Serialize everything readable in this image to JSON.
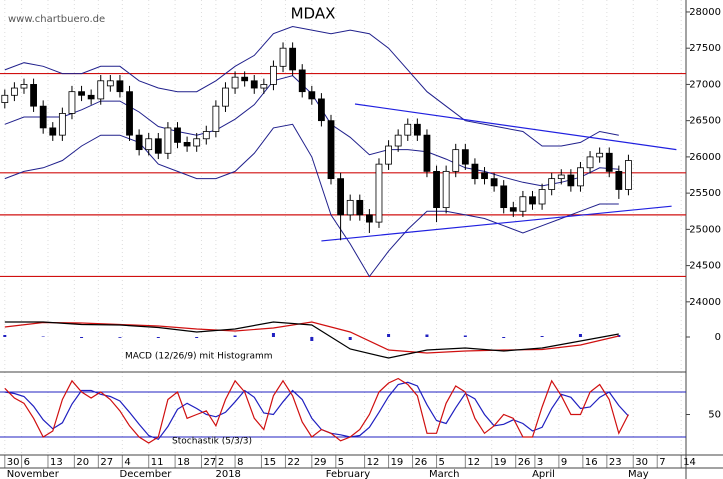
{
  "chart_data": [
    {
      "type": "candlestick",
      "title": "MDAX",
      "source": "www.chartbuero.de",
      "x": [
        0,
        2,
        4,
        6,
        8,
        10,
        12,
        14,
        16,
        18,
        20,
        22,
        24,
        26,
        28,
        30,
        32,
        34,
        36,
        38,
        40,
        42,
        44,
        46,
        48,
        50,
        52,
        54,
        56,
        58,
        60,
        62,
        64,
        66,
        68,
        70,
        72,
        74,
        76,
        78,
        80,
        82,
        84,
        86,
        88,
        90,
        92,
        94,
        96,
        98,
        100,
        102,
        104,
        106,
        108,
        110,
        112,
        114,
        116,
        118,
        120,
        122,
        124,
        126,
        128,
        130
      ],
      "open": [
        26750,
        26850,
        26950,
        27000,
        26700,
        26400,
        26300,
        26600,
        26900,
        26850,
        26800,
        26980,
        27050,
        26900,
        26300,
        26100,
        26250,
        26050,
        26400,
        26200,
        26150,
        26250,
        26350,
        26700,
        26950,
        27100,
        27050,
        26950,
        27000,
        27250,
        27500,
        27200,
        26900,
        26800,
        26500,
        25700,
        25200,
        25400,
        25200,
        25100,
        25900,
        26150,
        26300,
        26450,
        26300,
        25800,
        25300,
        25800,
        26100,
        25900,
        25780,
        25700,
        25600,
        25300,
        25250,
        25450,
        25350,
        25550,
        25700,
        25750,
        25600,
        25850,
        26000,
        26050,
        25800,
        25550
      ],
      "high": [
        26930,
        27030,
        27080,
        27080,
        26780,
        26480,
        26680,
        26980,
        26980,
        26930,
        27130,
        27130,
        27130,
        26980,
        26380,
        26330,
        26330,
        26480,
        26480,
        26280,
        26330,
        26430,
        26780,
        27030,
        27180,
        27180,
        27130,
        27080,
        27330,
        27580,
        27580,
        27280,
        26980,
        26880,
        26580,
        25780,
        25480,
        25480,
        25280,
        25980,
        26230,
        26380,
        26530,
        26530,
        26380,
        25880,
        25880,
        26180,
        26180,
        25980,
        25860,
        25780,
        25680,
        25380,
        25530,
        25530,
        25630,
        25780,
        25830,
        25830,
        25930,
        26080,
        26130,
        26130,
        25880,
        26030
      ],
      "low": [
        26670,
        26770,
        26870,
        26620,
        26320,
        26220,
        26220,
        26520,
        26770,
        26720,
        26720,
        26900,
        26820,
        26220,
        26020,
        26020,
        25970,
        25970,
        26120,
        26070,
        26070,
        26170,
        26270,
        26620,
        26870,
        26970,
        26870,
        26870,
        26920,
        27170,
        27120,
        26820,
        26720,
        26420,
        25620,
        24850,
        25120,
        25120,
        24950,
        25020,
        25820,
        26070,
        26220,
        26220,
        25720,
        25100,
        25220,
        25720,
        25820,
        25620,
        25620,
        25520,
        25220,
        25170,
        25170,
        25270,
        25270,
        25470,
        25620,
        25520,
        25520,
        25770,
        25920,
        25720,
        25420,
        25470
      ],
      "close": [
        26850,
        26950,
        27000,
        26700,
        26400,
        26300,
        26600,
        26900,
        26850,
        26800,
        27050,
        27050,
        26900,
        26300,
        26100,
        26250,
        26050,
        26400,
        26200,
        26150,
        26250,
        26350,
        26700,
        26950,
        27100,
        27050,
        26950,
        27000,
        27250,
        27500,
        27200,
        26900,
        26800,
        26500,
        25700,
        25200,
        25400,
        25200,
        25100,
        25900,
        26150,
        26300,
        26450,
        26300,
        25800,
        25300,
        25800,
        26100,
        25900,
        25700,
        25700,
        25600,
        25300,
        25250,
        25450,
        25350,
        25550,
        25700,
        25750,
        25600,
        25850,
        26000,
        26050,
        25800,
        25550,
        25950
      ],
      "up_color": "#ffffff",
      "down_color": "#000000",
      "bands": {
        "color": "#20208c",
        "x": [
          0,
          4,
          8,
          12,
          16,
          20,
          24,
          28,
          32,
          36,
          40,
          44,
          48,
          52,
          56,
          60,
          64,
          68,
          72,
          76,
          80,
          84,
          88,
          92,
          96,
          100,
          104,
          108,
          112,
          116,
          120,
          124,
          128
        ],
        "upper": [
          27200,
          27300,
          27250,
          27150,
          27150,
          27250,
          27250,
          27050,
          26950,
          26900,
          26900,
          27050,
          27250,
          27400,
          27700,
          27800,
          27750,
          27700,
          27750,
          27700,
          27500,
          27200,
          26900,
          26700,
          26500,
          26450,
          26400,
          26350,
          26150,
          26150,
          26200,
          26350,
          26300
        ],
        "middle": [
          26450,
          26550,
          26550,
          26550,
          26650,
          26770,
          26770,
          26620,
          26420,
          26350,
          26300,
          26370,
          26520,
          26720,
          27050,
          27120,
          26870,
          26450,
          26270,
          26030,
          26100,
          26100,
          26070,
          25970,
          25850,
          25800,
          25720,
          25650,
          25600,
          25650,
          25720,
          25850,
          25830
        ],
        "lower": [
          25700,
          25800,
          25850,
          25950,
          26150,
          26300,
          26300,
          26200,
          25900,
          25800,
          25700,
          25700,
          25800,
          26050,
          26400,
          26450,
          26000,
          25200,
          24800,
          24350,
          24700,
          25000,
          25250,
          25250,
          25200,
          25150,
          25050,
          24950,
          25050,
          25150,
          25250,
          25350,
          25350
        ]
      },
      "hlines": [
        27150,
        25780,
        25200,
        24350
      ],
      "hline_color": "#d01010",
      "trendlines": [
        {
          "x": [
            73,
            140
          ],
          "y": [
            26730,
            26100
          ]
        },
        {
          "x": [
            66,
            139
          ],
          "y": [
            24840,
            25320
          ]
        }
      ],
      "trend_color": "#2020e0",
      "xlim": [
        -1,
        142
      ],
      "xticks": [
        {
          "value": 0,
          "label": "30"
        },
        {
          "value": 3.5,
          "label": "6"
        },
        {
          "value": 9,
          "label": "13"
        },
        {
          "value": 14.5,
          "label": "20"
        },
        {
          "value": 19.5,
          "label": "27"
        },
        {
          "value": 24.5,
          "label": "4"
        },
        {
          "value": 30,
          "label": "11"
        },
        {
          "value": 35.5,
          "label": "18"
        },
        {
          "value": 41,
          "label": "27"
        },
        {
          "value": 44,
          "label": "2"
        },
        {
          "value": 48,
          "label": "8"
        },
        {
          "value": 53.5,
          "label": "15"
        },
        {
          "value": 58.5,
          "label": "22"
        },
        {
          "value": 64,
          "label": "29"
        },
        {
          "value": 69,
          "label": "5"
        },
        {
          "value": 75,
          "label": "12"
        },
        {
          "value": 80,
          "label": "19"
        },
        {
          "value": 85,
          "label": "26"
        },
        {
          "value": 90,
          "label": "5"
        },
        {
          "value": 96,
          "label": "12"
        },
        {
          "value": 101.5,
          "label": "19"
        },
        {
          "value": 106.5,
          "label": "26"
        },
        {
          "value": 110.5,
          "label": "3"
        },
        {
          "value": 115.5,
          "label": "9"
        },
        {
          "value": 120.5,
          "label": "16"
        },
        {
          "value": 125.5,
          "label": "23"
        },
        {
          "value": 131,
          "label": "30"
        },
        {
          "value": 136,
          "label": "7"
        },
        {
          "value": 141,
          "label": "14"
        }
      ],
      "months": [
        {
          "value": 0,
          "label": "November"
        },
        {
          "value": 23.5,
          "label": "December"
        },
        {
          "value": 43.5,
          "label": "2018"
        },
        {
          "value": 66.5,
          "label": "February"
        },
        {
          "value": 88,
          "label": "March"
        },
        {
          "value": 109.5,
          "label": "April"
        },
        {
          "value": 129.5,
          "label": "May"
        }
      ],
      "ylim": [
        23970,
        28165
      ],
      "yticks": [
        24000,
        24500,
        25000,
        25500,
        26000,
        26500,
        27000,
        27500,
        28000
      ]
    },
    {
      "type": "macd",
      "label": "MACD (12/26/9) mit Histogramm",
      "x": [
        0,
        8,
        16,
        24,
        32,
        40,
        48,
        56,
        64,
        72,
        80,
        88,
        96,
        104,
        112,
        120,
        128
      ],
      "macd": [
        150,
        150,
        125,
        120,
        95,
        50,
        80,
        150,
        120,
        -120,
        -210,
        -130,
        -110,
        -140,
        -110,
        -40,
        30
      ],
      "macd_color": "#000000",
      "signal": [
        100,
        145,
        140,
        125,
        110,
        80,
        60,
        90,
        150,
        50,
        -130,
        -160,
        -140,
        -130,
        -125,
        -80,
        10
      ],
      "signal_color": "#d01010",
      "histogram": [
        20,
        5,
        -10,
        -8,
        -10,
        -10,
        15,
        40,
        -40,
        -30,
        30,
        25,
        15,
        -10,
        10,
        30,
        20
      ],
      "histogram_color": "#2020c0",
      "ylim": [
        -330,
        320
      ],
      "yticks": [
        0
      ]
    },
    {
      "type": "stochastic",
      "label": "Stochastik (5/3/3)",
      "x": [
        0,
        2,
        4,
        6,
        8,
        10,
        12,
        14,
        16,
        18,
        20,
        22,
        24,
        26,
        28,
        30,
        32,
        34,
        36,
        38,
        40,
        42,
        44,
        46,
        48,
        50,
        52,
        54,
        56,
        58,
        60,
        62,
        64,
        66,
        68,
        70,
        72,
        74,
        76,
        78,
        80,
        82,
        84,
        86,
        88,
        90,
        92,
        94,
        96,
        98,
        100,
        102,
        104,
        106,
        108,
        110,
        112,
        114,
        116,
        118,
        120,
        122,
        124,
        126,
        128,
        130
      ],
      "k": [
        85,
        72,
        65,
        45,
        20,
        28,
        70,
        95,
        80,
        72,
        80,
        70,
        55,
        35,
        20,
        12,
        20,
        70,
        80,
        45,
        50,
        55,
        35,
        70,
        95,
        80,
        45,
        30,
        75,
        95,
        75,
        40,
        20,
        30,
        25,
        15,
        20,
        30,
        50,
        80,
        92,
        98,
        90,
        75,
        25,
        25,
        65,
        88,
        80,
        45,
        25,
        35,
        50,
        45,
        20,
        20,
        60,
        95,
        75,
        50,
        50,
        80,
        90,
        70,
        25,
        50
      ],
      "k_color": "#d01010",
      "d": [
        80,
        78,
        74,
        61,
        43,
        31,
        39,
        64,
        82,
        82,
        77,
        74,
        68,
        53,
        37,
        22,
        17,
        34,
        57,
        65,
        58,
        50,
        47,
        53,
        67,
        82,
        73,
        52,
        50,
        67,
        82,
        70,
        45,
        30,
        25,
        23,
        20,
        22,
        33,
        53,
        74,
        90,
        93,
        88,
        63,
        42,
        38,
        59,
        78,
        71,
        50,
        35,
        37,
        43,
        38,
        28,
        33,
        58,
        77,
        73,
        58,
        60,
        73,
        80,
        62,
        48
      ],
      "d_color": "#2020c0",
      "hlines": [
        20,
        80
      ],
      "hline_color": "#2020c0",
      "ylim": [
        0,
        100
      ],
      "yticks": [
        50
      ]
    }
  ]
}
